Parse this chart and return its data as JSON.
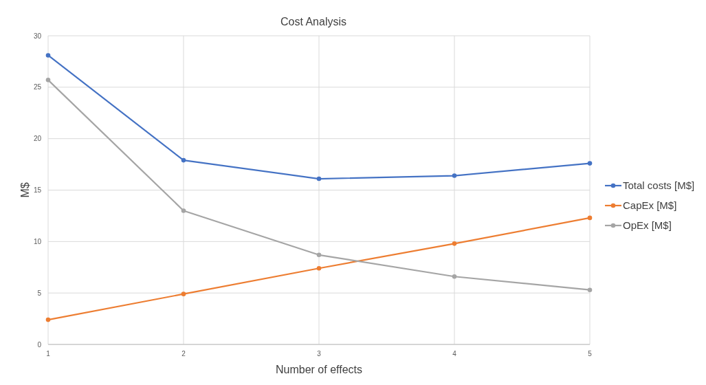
{
  "chart_data": {
    "type": "line",
    "title": "Cost Analysis",
    "xlabel": "Number of effects",
    "ylabel": "M$",
    "x": [
      1,
      2,
      3,
      4,
      5
    ],
    "series": [
      {
        "name": "Total costs [M$]",
        "color": "#4472c4",
        "values": [
          28.1,
          17.9,
          16.1,
          16.4,
          17.6
        ]
      },
      {
        "name": "CapEx [M$]",
        "color": "#ed7d31",
        "values": [
          2.4,
          4.9,
          7.4,
          9.8,
          12.3
        ]
      },
      {
        "name": "OpEx [M$]",
        "color": "#a5a5a5",
        "values": [
          25.7,
          13.0,
          8.7,
          6.6,
          5.3
        ]
      }
    ],
    "xlim": [
      1,
      5
    ],
    "xticks": [
      1,
      2,
      3,
      4,
      5
    ],
    "ylim": [
      0,
      30
    ],
    "yticks": [
      0,
      5,
      10,
      15,
      20,
      25,
      30
    ],
    "grid": true,
    "legend": "right",
    "marker": "circle",
    "line_style": "solid"
  }
}
